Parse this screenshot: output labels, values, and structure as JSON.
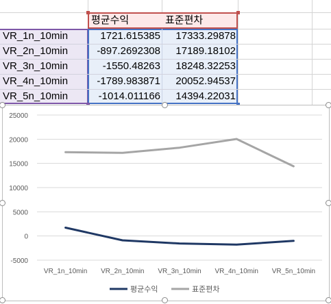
{
  "table": {
    "headers": [
      "평균수익",
      "표준편차"
    ],
    "rows": [
      {
        "label": "VR_1n_10min",
        "mean": "1721.615385",
        "std": "17333.29878"
      },
      {
        "label": "VR_2n_10min",
        "mean": "-897.2692308",
        "std": "17189.18102"
      },
      {
        "label": "VR_3n_10min",
        "mean": "-1550.48263",
        "std": "18248.32253"
      },
      {
        "label": "VR_4n_10min",
        "mean": "-1789.983871",
        "std": "20052.94537"
      },
      {
        "label": "VR_5n_10min",
        "mean": "-1014.011166",
        "std": "14394.22031"
      }
    ]
  },
  "chart_data": {
    "type": "line",
    "categories": [
      "VR_1n_10min",
      "VR_2n_10min",
      "VR_3n_10min",
      "VR_4n_10min",
      "VR_5n_10min"
    ],
    "series": [
      {
        "name": "평균수익",
        "values": [
          1721.615385,
          -897.2692308,
          -1550.48263,
          -1789.983871,
          -1014.011166
        ],
        "color": "#1f3864"
      },
      {
        "name": "표준편차",
        "values": [
          17333.29878,
          17189.18102,
          18248.32253,
          20052.94537,
          14394.22031
        ],
        "color": "#a5a5a5"
      }
    ],
    "yticks": [
      "25000",
      "20000",
      "15000",
      "10000",
      "5000",
      "0",
      "-5000"
    ],
    "ylim": [
      -5000,
      25000
    ],
    "grid": true,
    "legend_position": "bottom"
  }
}
